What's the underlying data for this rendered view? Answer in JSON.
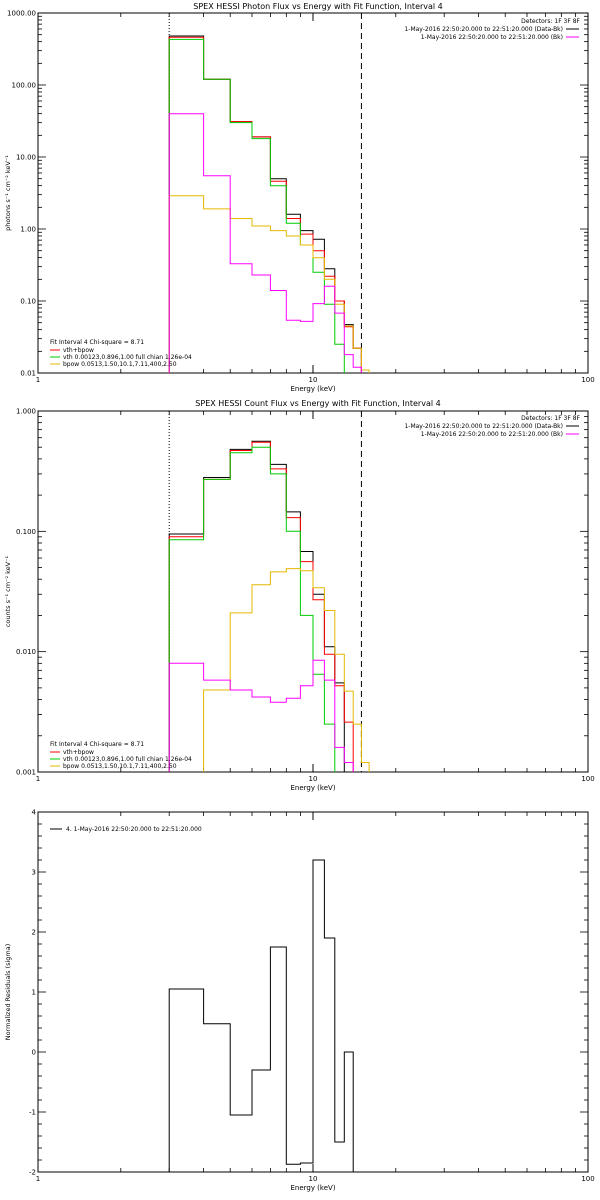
{
  "figure": {
    "title_photon": "SPEX HESSI Photon Flux vs Energy with Fit Function, Interval 4",
    "title_count": "SPEX HESSI Count Flux vs Energy with Fit Function, Interval 4",
    "detectors": "Detectors: 1F 3F 8F",
    "legend_time1": "1-May-2016 22:50:20.000 to 22:51:20.000 (Data-Bk)",
    "legend_time2": "1-May-2016 22:50:20.000 to 22:51:20.000 (Bk)",
    "fit_interval": "Fit Interval 4   Chi-square = 8.71",
    "resid_legend": "4. 1-May-2016 22:50:20.000 to 22:51:20.000"
  },
  "colors": {
    "data": "#000000",
    "total": "#ff0000",
    "vth": "#00cc00",
    "bpow": "#e6b800",
    "background": "#ff00ff",
    "dotted_line": "#000000",
    "dashed_line": "#000000"
  },
  "chart_data": [
    {
      "type": "line",
      "step": true,
      "title": "SPEX HESSI Photon Flux vs Energy with Fit Function, Interval 4",
      "xlabel": "Energy (keV)",
      "ylabel": "photons s⁻¹ cm⁻² keV⁻¹",
      "xscale": "log",
      "yscale": "log",
      "xlim": [
        1,
        100
      ],
      "ylim": [
        0.01,
        1000
      ],
      "xticks": [
        "1",
        "10",
        "100"
      ],
      "yticks": [
        "0.01",
        "0.10",
        "1.00",
        "10.00",
        "100.00",
        "1000.00"
      ],
      "bin_edges": [
        3,
        4,
        5,
        6,
        7,
        8,
        9,
        10,
        11,
        12,
        13,
        14,
        15,
        16,
        17,
        18
      ],
      "series": [
        {
          "name": "Data-Bk",
          "color_key": "data",
          "values": [
            480,
            120,
            31,
            19,
            5,
            1.6,
            0.95,
            0.72,
            0.28,
            0.1,
            0.047,
            0.022,
            null,
            null,
            null
          ]
        },
        {
          "name": "vth+bpow",
          "color_key": "total",
          "values": [
            460,
            120,
            31,
            19,
            4.6,
            1.4,
            0.85,
            0.5,
            0.22,
            0.1,
            0.044,
            0.022,
            null,
            null,
            null
          ]
        },
        {
          "name": "vth 0.00123,0.896,1.00  full chian 1.26e-04",
          "color_key": "vth",
          "values": [
            430,
            120,
            30,
            18,
            4.0,
            1.2,
            0.6,
            0.25,
            0.09,
            0.025,
            null,
            null,
            null,
            null,
            null
          ]
        },
        {
          "name": "bpow 0.0513,1.50,10.1,7.11,400,2.50",
          "color_key": "bpow",
          "values": [
            2.9,
            1.9,
            1.4,
            1.1,
            0.95,
            0.8,
            0.6,
            0.4,
            0.2,
            0.09,
            0.045,
            0.022,
            0.011,
            null,
            null
          ]
        },
        {
          "name": "Bk",
          "color_key": "background",
          "values": [
            40,
            5.5,
            0.33,
            0.23,
            0.14,
            0.054,
            0.052,
            0.092,
            0.16,
            0.068,
            0.018,
            0.012,
            null,
            null,
            null
          ]
        }
      ],
      "vlines": [
        {
          "x": 3,
          "style": "dotted"
        },
        {
          "x": 15,
          "style": "dashed"
        }
      ],
      "legend": "top-right and bottom-left"
    },
    {
      "type": "line",
      "step": true,
      "title": "SPEX HESSI Count Flux vs Energy with Fit Function, Interval 4",
      "xlabel": "Energy (keV)",
      "ylabel": "counts s⁻¹ cm⁻² keV⁻¹",
      "xscale": "log",
      "yscale": "log",
      "xlim": [
        1,
        100
      ],
      "ylim": [
        0.001,
        1.0
      ],
      "xticks": [
        "1",
        "10",
        "100"
      ],
      "yticks": [
        "0.001",
        "0.010",
        "0.100",
        "1.000"
      ],
      "bin_edges": [
        3,
        4,
        5,
        6,
        7,
        8,
        9,
        10,
        11,
        12,
        13,
        14,
        15,
        16,
        17,
        18
      ],
      "series": [
        {
          "name": "Data-Bk",
          "color_key": "data",
          "values": [
            0.095,
            0.28,
            0.48,
            0.56,
            0.36,
            0.145,
            0.068,
            0.03,
            0.011,
            0.0055,
            null,
            null,
            null,
            null,
            null
          ]
        },
        {
          "name": "vth+bpow",
          "color_key": "total",
          "values": [
            0.09,
            0.27,
            0.47,
            0.55,
            0.33,
            0.13,
            0.056,
            0.027,
            0.0095,
            0.0052,
            0.0026,
            null,
            null,
            null,
            null
          ]
        },
        {
          "name": "vth 0.00123,0.896,1.00  full chian 1.26e-04",
          "color_key": "vth",
          "values": [
            0.085,
            0.27,
            0.45,
            0.5,
            0.3,
            0.1,
            0.02,
            0.0065,
            0.0025,
            null,
            null,
            null,
            null,
            null,
            null
          ]
        },
        {
          "name": "bpow 0.0513,1.50,10.1,7.11,400,2.50",
          "color_key": "bpow",
          "values": [
            null,
            0.0048,
            0.021,
            0.036,
            0.046,
            0.049,
            0.047,
            0.034,
            0.022,
            0.0095,
            0.0047,
            0.0025,
            0.0012,
            null,
            null
          ]
        },
        {
          "name": "Bk",
          "color_key": "background",
          "values": [
            0.008,
            0.0058,
            0.0048,
            0.0042,
            0.0038,
            0.0041,
            0.0052,
            0.0085,
            0.0058,
            0.0016,
            0.0012,
            null,
            null,
            null,
            null
          ]
        }
      ],
      "vlines": [
        {
          "x": 3,
          "style": "dotted"
        },
        {
          "x": 15,
          "style": "dashed"
        }
      ],
      "legend": "top-right and bottom-left"
    },
    {
      "type": "line",
      "step": true,
      "title": "",
      "xlabel": "Energy (keV)",
      "ylabel": "Normalized Residuals (sigma)",
      "xscale": "log",
      "yscale": "linear",
      "xlim": [
        1,
        100
      ],
      "ylim": [
        -2,
        4
      ],
      "xticks": [
        "1",
        "10",
        "100"
      ],
      "yticks": [
        "-2",
        "-1",
        "0",
        "1",
        "2",
        "3",
        "4"
      ],
      "bin_edges": [
        3,
        4,
        5,
        6,
        7,
        8,
        9,
        10,
        11,
        12,
        13,
        14,
        15
      ],
      "series": [
        {
          "name": "4. 1-May-2016 22:50:20.000 to 22:51:20.000",
          "color_key": "data",
          "values": [
            1.05,
            0.47,
            -1.05,
            -0.3,
            1.75,
            -1.87,
            -1.85,
            3.2,
            1.9,
            -1.5,
            0.0,
            null
          ]
        }
      ],
      "legend": "top-left"
    }
  ]
}
